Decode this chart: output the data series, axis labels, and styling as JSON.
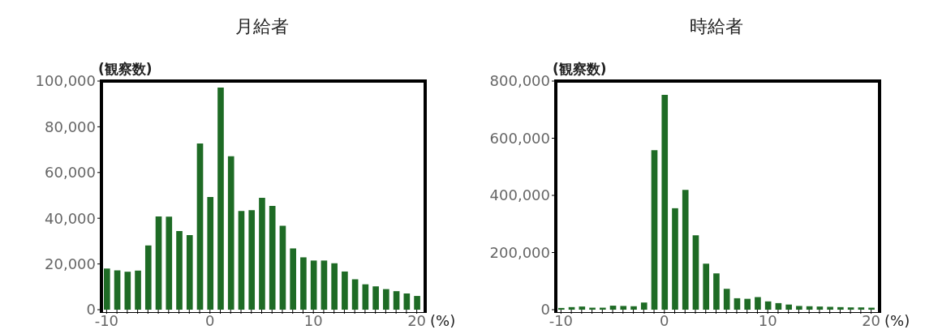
{
  "chart_data": [
    {
      "type": "bar",
      "title": "月給者",
      "ylabel": "(観察数)",
      "xlabel": "(%)",
      "color": "#1e6b25",
      "x": [
        -10,
        -9,
        -8,
        -7,
        -6,
        -5,
        -4,
        -3,
        -2,
        -1,
        0,
        1,
        2,
        3,
        4,
        5,
        6,
        7,
        8,
        9,
        10,
        11,
        12,
        13,
        14,
        15,
        16,
        17,
        18,
        19,
        20
      ],
      "values": [
        18000,
        17200,
        16600,
        17100,
        28100,
        40800,
        40700,
        34400,
        32600,
        72700,
        49300,
        97200,
        67100,
        43200,
        43500,
        48900,
        45400,
        36700,
        26800,
        22900,
        21500,
        21500,
        20300,
        16700,
        13300,
        11100,
        10200,
        9000,
        8100,
        7100,
        6000
      ],
      "xlim": [
        -10.5,
        20.5
      ],
      "xticks": [
        -10,
        {
          "value": -9,
          "label": null
        },
        {
          "value": -8,
          "label": null
        },
        {
          "value": -7,
          "label": null
        },
        {
          "value": -6,
          "label": null
        },
        {
          "value": -5,
          "label": null
        },
        {
          "value": -4,
          "label": null
        },
        {
          "value": -3,
          "label": null
        },
        {
          "value": -2,
          "label": null
        },
        {
          "value": -1,
          "label": null
        },
        0,
        {
          "value": 1,
          "label": null
        },
        {
          "value": 2,
          "label": null
        },
        {
          "value": 3,
          "label": null
        },
        {
          "value": 4,
          "label": null
        },
        {
          "value": 5,
          "label": null
        },
        {
          "value": 6,
          "label": null
        },
        {
          "value": 7,
          "label": null
        },
        {
          "value": 8,
          "label": null
        },
        {
          "value": 9,
          "label": null
        },
        10,
        {
          "value": 11,
          "label": null
        },
        {
          "value": 12,
          "label": null
        },
        {
          "value": 13,
          "label": null
        },
        {
          "value": 14,
          "label": null
        },
        {
          "value": 15,
          "label": null
        },
        {
          "value": 16,
          "label": null
        },
        {
          "value": 17,
          "label": null
        },
        {
          "value": 18,
          "label": null
        },
        {
          "value": 19,
          "label": null
        },
        20
      ],
      "ylim": [
        0,
        100000
      ],
      "yticks": [
        0,
        {
          "value": 20000,
          "label": "20,000"
        },
        {
          "value": 40000,
          "label": "40,000"
        },
        {
          "value": 60000,
          "label": "60,000"
        },
        {
          "value": 80000,
          "label": "80,000"
        },
        {
          "value": 100000,
          "label": "100,000"
        }
      ]
    },
    {
      "type": "bar",
      "title": "時給者",
      "ylabel": "(観察数)",
      "xlabel": "(%)",
      "color": "#1e6b25",
      "x": [
        -10,
        -9,
        -8,
        -7,
        -6,
        -5,
        -4,
        -3,
        -2,
        -1,
        0,
        1,
        2,
        3,
        4,
        5,
        6,
        7,
        8,
        9,
        10,
        11,
        12,
        13,
        14,
        15,
        16,
        17,
        18,
        19,
        20
      ],
      "values": [
        6000,
        9000,
        11000,
        7000,
        7000,
        14000,
        13000,
        12000,
        25000,
        558000,
        752000,
        355000,
        419000,
        260000,
        161000,
        127000,
        73000,
        40000,
        38000,
        44000,
        29000,
        23000,
        18000,
        13000,
        12000,
        11000,
        10000,
        9000,
        8000,
        8000,
        7000
      ],
      "xlim": [
        -10.5,
        20.5
      ],
      "xticks": [
        -10,
        {
          "value": -9,
          "label": null
        },
        {
          "value": -8,
          "label": null
        },
        {
          "value": -7,
          "label": null
        },
        {
          "value": -6,
          "label": null
        },
        {
          "value": -5,
          "label": null
        },
        {
          "value": -4,
          "label": null
        },
        {
          "value": -3,
          "label": null
        },
        {
          "value": -2,
          "label": null
        },
        {
          "value": -1,
          "label": null
        },
        0,
        {
          "value": 1,
          "label": null
        },
        {
          "value": 2,
          "label": null
        },
        {
          "value": 3,
          "label": null
        },
        {
          "value": 4,
          "label": null
        },
        {
          "value": 5,
          "label": null
        },
        {
          "value": 6,
          "label": null
        },
        {
          "value": 7,
          "label": null
        },
        {
          "value": 8,
          "label": null
        },
        {
          "value": 9,
          "label": null
        },
        10,
        {
          "value": 11,
          "label": null
        },
        {
          "value": 12,
          "label": null
        },
        {
          "value": 13,
          "label": null
        },
        {
          "value": 14,
          "label": null
        },
        {
          "value": 15,
          "label": null
        },
        {
          "value": 16,
          "label": null
        },
        {
          "value": 17,
          "label": null
        },
        {
          "value": 18,
          "label": null
        },
        {
          "value": 19,
          "label": null
        },
        20
      ],
      "ylim": [
        0,
        800000
      ],
      "yticks": [
        0,
        {
          "value": 200000,
          "label": "200,000"
        },
        {
          "value": 400000,
          "label": "400,000"
        },
        {
          "value": 600000,
          "label": "600,000"
        },
        {
          "value": 800000,
          "label": "800,000"
        }
      ]
    }
  ]
}
